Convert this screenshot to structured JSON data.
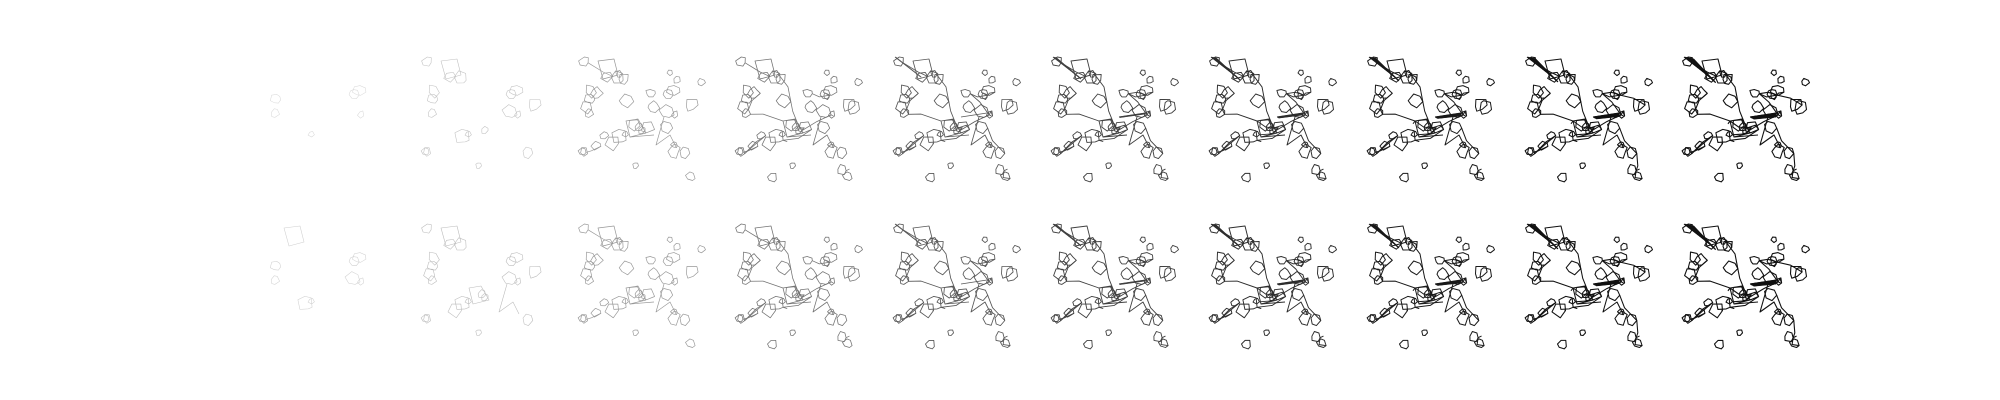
{
  "figure": {
    "description_kind": "grid-of-progressive-line-drawings",
    "rows": [
      {
        "row": "top",
        "panels": [
          {
            "step": 1,
            "ink_level": 0.02
          },
          {
            "step": 2,
            "ink_level": 0.12
          },
          {
            "step": 3,
            "ink_level": 0.3
          },
          {
            "step": 4,
            "ink_level": 0.45
          },
          {
            "step": 5,
            "ink_level": 0.58
          },
          {
            "step": 6,
            "ink_level": 0.68
          },
          {
            "step": 7,
            "ink_level": 0.77
          },
          {
            "step": 8,
            "ink_level": 0.85
          },
          {
            "step": 9,
            "ink_level": 0.92
          },
          {
            "step": 10,
            "ink_level": 1.0
          }
        ]
      },
      {
        "row": "bottom",
        "panels": [
          {
            "step": 1,
            "ink_level": 0.05
          },
          {
            "step": 2,
            "ink_level": 0.14
          },
          {
            "step": 3,
            "ink_level": 0.3
          },
          {
            "step": 4,
            "ink_level": 0.45
          },
          {
            "step": 5,
            "ink_level": 0.58
          },
          {
            "step": 6,
            "ink_level": 0.68
          },
          {
            "step": 7,
            "ink_level": 0.77
          },
          {
            "step": 8,
            "ink_level": 0.85
          },
          {
            "step": 9,
            "ink_level": 0.92
          },
          {
            "step": 10,
            "ink_level": 1.0
          }
        ]
      }
    ],
    "colors": {
      "background": "#ffffff",
      "ink": "#111111"
    }
  }
}
